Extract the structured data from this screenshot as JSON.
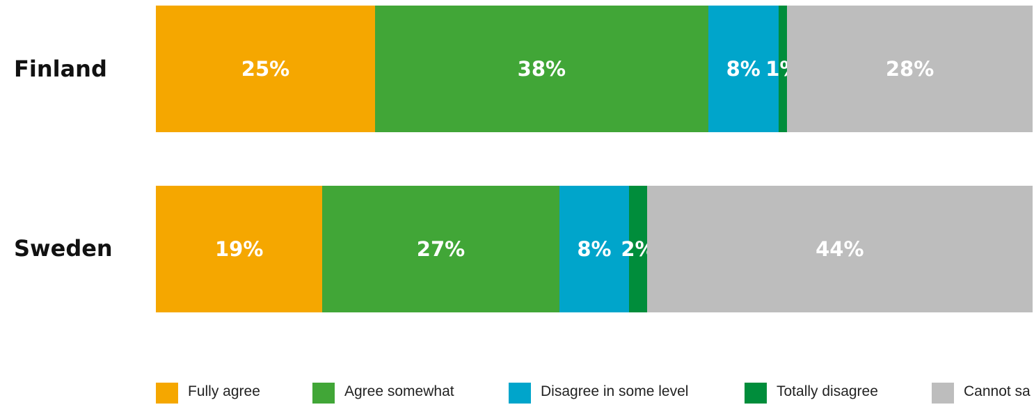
{
  "chart_data": {
    "type": "bar",
    "orientation": "horizontal",
    "stacked": true,
    "categories": [
      "Finland",
      "Sweden"
    ],
    "series": [
      {
        "name": "Fully agree",
        "color": "#f5a700",
        "values": [
          25,
          19
        ],
        "labels": [
          "25%",
          "19%"
        ]
      },
      {
        "name": "Agree somewhat",
        "color": "#41a637",
        "values": [
          38,
          27
        ],
        "labels": [
          "38%",
          "27%"
        ]
      },
      {
        "name": "Disagree in some level",
        "color": "#00a5cb",
        "values": [
          8,
          8
        ],
        "labels": [
          "8%",
          "8%"
        ]
      },
      {
        "name": "Totally disagree",
        "color": "#008d3b",
        "values": [
          1,
          2
        ],
        "labels": [
          "1%",
          "2%"
        ]
      },
      {
        "name": "Cannot sa",
        "color": "#bdbdbd",
        "values": [
          28,
          44
        ],
        "labels": [
          "28%",
          "44%"
        ]
      }
    ],
    "legend_position": "bottom",
    "grid": false
  }
}
